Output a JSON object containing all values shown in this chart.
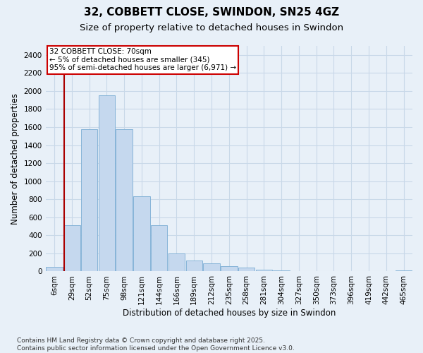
{
  "title_line1": "32, COBBETT CLOSE, SWINDON, SN25 4GZ",
  "title_line2": "Size of property relative to detached houses in Swindon",
  "xlabel": "Distribution of detached houses by size in Swindon",
  "ylabel": "Number of detached properties",
  "categories": [
    "6sqm",
    "29sqm",
    "52sqm",
    "75sqm",
    "98sqm",
    "121sqm",
    "144sqm",
    "166sqm",
    "189sqm",
    "212sqm",
    "235sqm",
    "258sqm",
    "281sqm",
    "304sqm",
    "327sqm",
    "350sqm",
    "373sqm",
    "396sqm",
    "419sqm",
    "442sqm",
    "465sqm"
  ],
  "values": [
    50,
    510,
    1580,
    1950,
    1580,
    830,
    510,
    200,
    120,
    90,
    55,
    45,
    20,
    10,
    0,
    0,
    0,
    0,
    0,
    0,
    10
  ],
  "bar_color": "#c5d8ee",
  "bar_edge_color": "#7badd4",
  "grid_color": "#c8d8e8",
  "bg_color": "#e8f0f8",
  "annotation_box_text": "32 COBBETT CLOSE: 70sqm\n← 5% of detached houses are smaller (345)\n95% of semi-detached houses are larger (6,971) →",
  "annotation_box_color": "#ffffff",
  "annotation_box_edgecolor": "#cc0000",
  "vline_color": "#aa0000",
  "vline_pos": 0.55,
  "ylim": [
    0,
    2500
  ],
  "yticks": [
    0,
    200,
    400,
    600,
    800,
    1000,
    1200,
    1400,
    1600,
    1800,
    2000,
    2200,
    2400
  ],
  "footer_text": "Contains HM Land Registry data © Crown copyright and database right 2025.\nContains public sector information licensed under the Open Government Licence v3.0.",
  "title_fontsize": 11,
  "subtitle_fontsize": 9.5,
  "axis_label_fontsize": 8.5,
  "tick_fontsize": 7.5,
  "annotation_fontsize": 7.5,
  "footer_fontsize": 6.5
}
